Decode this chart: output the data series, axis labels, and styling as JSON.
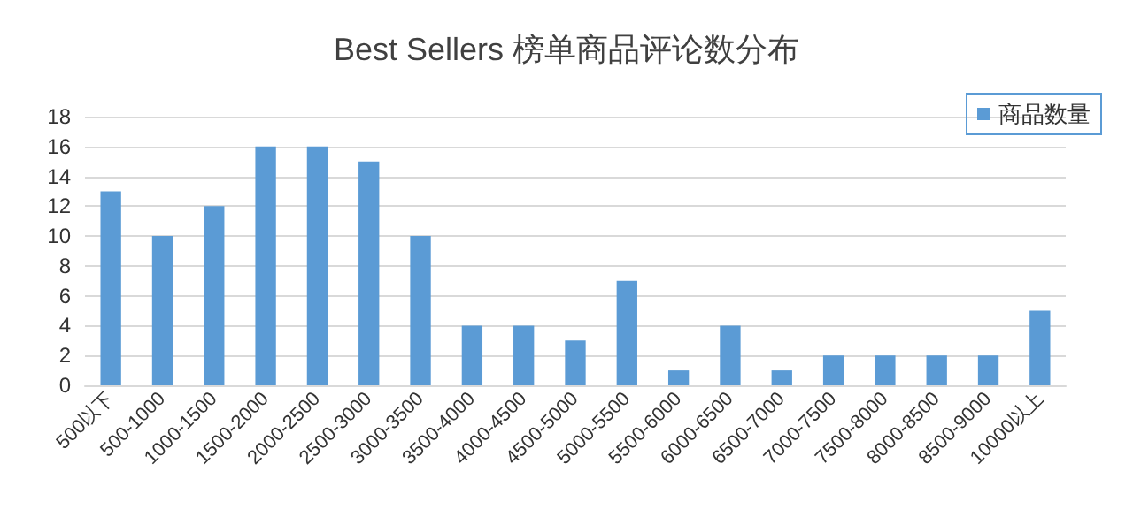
{
  "chart_data": {
    "type": "bar",
    "title": "Best Sellers 榜单商品评论数分布",
    "categories": [
      "500以下",
      "500-1000",
      "1000-1500",
      "1500-2000",
      "2000-2500",
      "2500-3000",
      "3000-3500",
      "3500-4000",
      "4000-4500",
      "4500-5000",
      "5000-5500",
      "5500-6000",
      "6000-6500",
      "6500-7000",
      "7000-7500",
      "7500-8000",
      "8000-8500",
      "8500-9000",
      "10000以上"
    ],
    "series": [
      {
        "name": "商品数量",
        "color": "#5b9bd5",
        "values": [
          13,
          10,
          12,
          16,
          16,
          15,
          10,
          4,
          4,
          3,
          7,
          1,
          4,
          1,
          2,
          2,
          2,
          2,
          5
        ]
      }
    ],
    "ylim": [
      0,
      18
    ],
    "yticks": [
      0,
      2,
      4,
      6,
      8,
      10,
      12,
      14,
      16,
      18
    ],
    "grid": "y",
    "legend": "top right"
  }
}
